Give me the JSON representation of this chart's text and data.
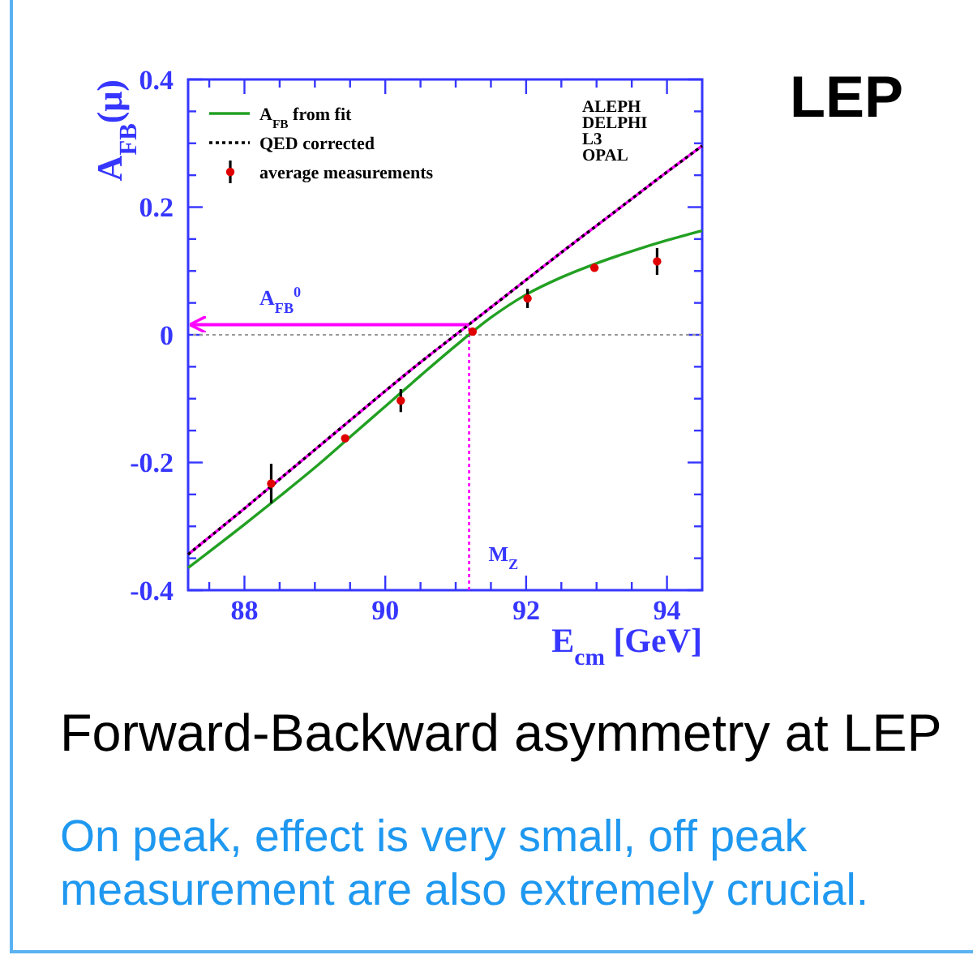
{
  "chart_data": {
    "type": "line",
    "title": "Forward-Backward asymmetry at LEP",
    "xlabel": "E$_{cm}$ [GeV]",
    "ylabel": "A$_{FB}$(μ)",
    "xlim": [
      87.2,
      94.5
    ],
    "ylim": [
      -0.4,
      0.4
    ],
    "xticks": [
      {
        "value": 87.5,
        "label": null
      },
      88,
      {
        "value": 88.5,
        "label": null
      },
      {
        "value": 89,
        "label": null
      },
      {
        "value": 89.5,
        "label": null
      },
      90,
      {
        "value": 90.5,
        "label": null
      },
      {
        "value": 91,
        "label": null
      },
      {
        "value": 91.5,
        "label": null
      },
      92,
      {
        "value": 92.5,
        "label": null
      },
      {
        "value": 93,
        "label": null
      },
      {
        "value": 93.5,
        "label": null
      },
      94
    ],
    "yticks": [
      -0.4,
      {
        "value": -0.35,
        "label": null
      },
      {
        "value": -0.3,
        "label": null
      },
      {
        "value": -0.25,
        "label": null
      },
      -0.2,
      {
        "value": -0.15,
        "label": null
      },
      {
        "value": -0.1,
        "label": null
      },
      {
        "value": -0.05,
        "label": null
      },
      0,
      {
        "value": 0.05,
        "label": null
      },
      {
        "value": 0.1,
        "label": null
      },
      {
        "value": 0.15,
        "label": null
      },
      0.2,
      {
        "value": 0.25,
        "label": null
      },
      {
        "value": 0.3,
        "label": null
      },
      {
        "value": 0.35,
        "label": null
      },
      0.4
    ],
    "series": [
      {
        "name": "A$_{FB}$ from fit",
        "color": "#22a022",
        "line_style": "solid",
        "x": [
          87.2,
          88,
          88.5,
          89,
          89.5,
          90,
          90.5,
          91,
          91.5,
          92,
          92.5,
          93,
          93.5,
          94,
          94.5
        ],
        "values": [
          -0.365,
          -0.297,
          -0.253,
          -0.208,
          -0.16,
          -0.112,
          -0.064,
          -0.017,
          0.027,
          0.063,
          0.09,
          0.112,
          0.131,
          0.148,
          0.163
        ]
      },
      {
        "color": "#ff00ff",
        "line_style": "solid",
        "x": [
          87.2,
          88,
          88.5,
          89,
          89.5,
          90,
          90.5,
          91,
          91.5,
          92,
          92.5,
          93,
          93.5,
          94,
          94.5
        ],
        "values": [
          -0.344,
          -0.272,
          -0.226,
          -0.18,
          -0.134,
          -0.088,
          -0.043,
          0,
          0.043,
          0.086,
          0.129,
          0.171,
          0.213,
          0.255,
          0.296
        ]
      },
      {
        "name": "QED corrected",
        "color": "#000000",
        "line_style": "dotted",
        "x": [
          87.2,
          88,
          88.5,
          89,
          89.5,
          90,
          90.5,
          91,
          91.5,
          92,
          92.5,
          93,
          93.5,
          94,
          94.5
        ],
        "values": [
          -0.344,
          -0.272,
          -0.226,
          -0.18,
          -0.134,
          -0.088,
          -0.043,
          0,
          0.043,
          0.086,
          0.129,
          0.171,
          0.213,
          0.255,
          0.296
        ]
      },
      {
        "name": "average measurements",
        "type": "scatter",
        "color": "#e00000",
        "marker": "circle",
        "x": [
          88.38,
          89.43,
          90.22,
          91.24,
          92.02,
          92.97,
          93.86
        ],
        "values": [
          -0.233,
          -0.162,
          -0.103,
          0.005,
          0.057,
          0.105,
          0.115
        ],
        "errors": [
          0.031,
          null,
          0.018,
          null,
          0.015,
          null,
          0.021
        ]
      }
    ],
    "ref_lines": [
      {
        "axis": "y",
        "value": 0,
        "color": "#999999",
        "line_style": "dotted"
      },
      {
        "axis": "y",
        "value": 0.016,
        "label": "A$_{FB}$$^{0}$",
        "color": "#ff00ff",
        "line_style": "solid"
      },
      {
        "axis": "x",
        "value": 91.19,
        "label": "M$_{Z}$",
        "color": "#ff00ff",
        "line_style": "dotted"
      }
    ],
    "annotations": [
      "LEP",
      "ALEPH\nDELPHI\nL3\nOPAL",
      "On peak, effect is very small, off peak measurement are also extremely crucial."
    ],
    "legend": "top left"
  }
}
